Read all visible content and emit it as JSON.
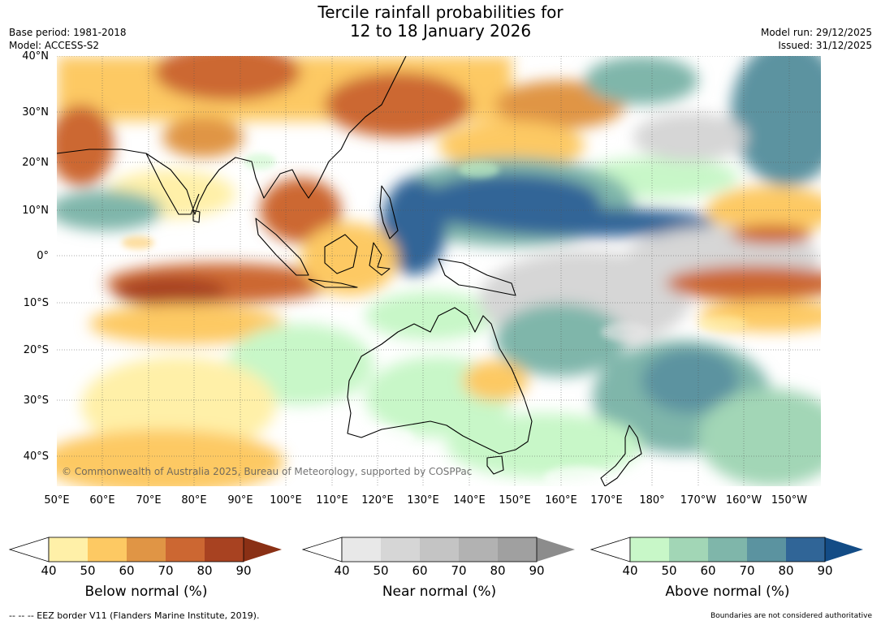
{
  "title_line1": "Tercile rainfall probabilities for",
  "title_line2": "12 to 18 January 2026",
  "base_period": "Base period: 1981-2018",
  "model": "Model: ACCESS-S2",
  "model_run": "Model run: 29/12/2025",
  "issued": "Issued: 31/12/2025",
  "copyright": "© Commonwealth of Australia 2025, Bureau of Meteorology, supported by COSPPac",
  "footer_left": "--  --  -- EEZ border V11 (Flanders Marine Institute, 2019).",
  "footer_right": "Boundaries are not considered authoritative",
  "lat_labels": [
    "40°N",
    "30°N",
    "20°N",
    "10°N",
    "0°",
    "10°S",
    "20°S",
    "30°S",
    "40°S"
  ],
  "lon_labels": [
    "50°E",
    "60°E",
    "70°E",
    "80°E",
    "90°E",
    "100°E",
    "110°E",
    "120°E",
    "130°E",
    "140°E",
    "150°E",
    "160°E",
    "170°E",
    "180°",
    "170°W",
    "160°W",
    "150°W"
  ],
  "colorbars": [
    {
      "label": "Below normal (%)",
      "ticks": [
        "40",
        "50",
        "60",
        "70",
        "80",
        "90"
      ],
      "colors": [
        "#fff0a8",
        "#fdc963",
        "#e09545",
        "#cc6732",
        "#a84221",
        "#8a3015"
      ]
    },
    {
      "label": "Near normal (%)",
      "ticks": [
        "40",
        "50",
        "60",
        "70",
        "80",
        "90"
      ],
      "colors": [
        "#e8e8e8",
        "#d6d6d6",
        "#c4c4c4",
        "#b2b2b2",
        "#a0a0a0",
        "#8c8c8c"
      ]
    },
    {
      "label": "Above normal (%)",
      "ticks": [
        "40",
        "50",
        "60",
        "70",
        "80",
        "90"
      ],
      "colors": [
        "#c8f7c8",
        "#a2d6b6",
        "#7fb6aa",
        "#5b93a0",
        "#306597",
        "#134c86"
      ]
    }
  ]
}
